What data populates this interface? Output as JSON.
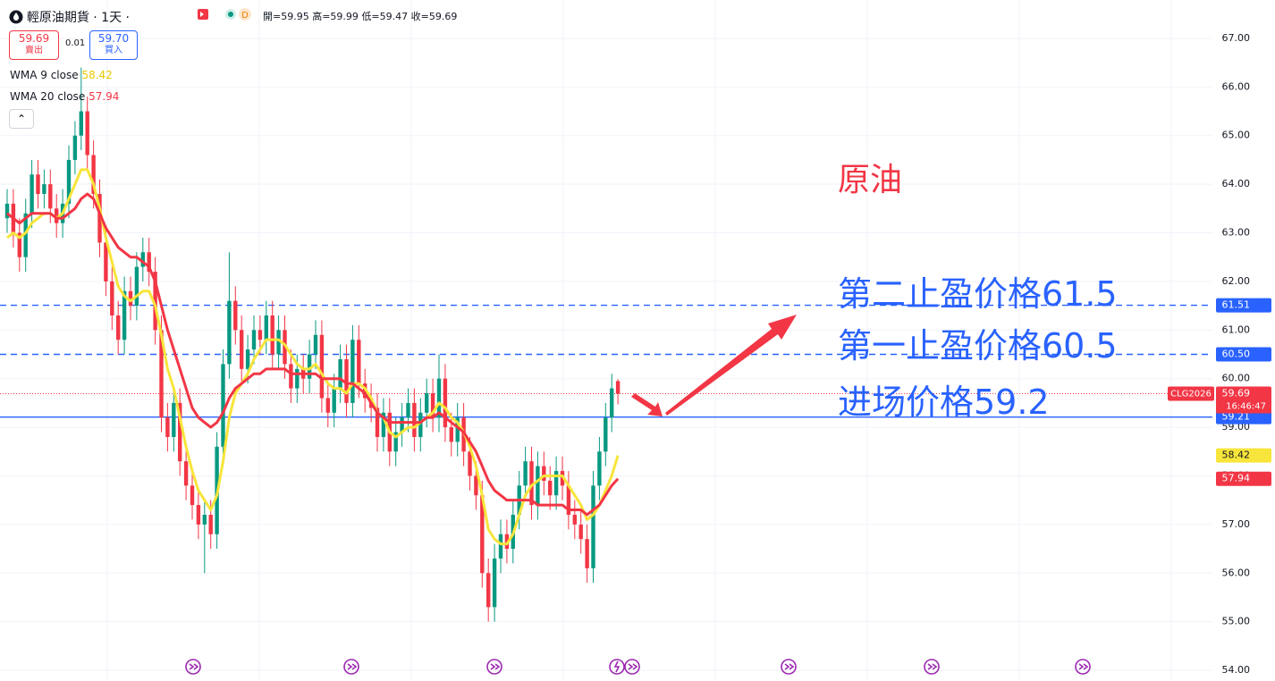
{
  "header": {
    "symbol_title": "輕原油期貨 · 1天 ·",
    "status": "D",
    "open": "開=59.95",
    "high": "高=59.99",
    "low": "低=59.47",
    "close": "收=59.69",
    "sell_price": "59.69",
    "sell_label": "賣出",
    "spread": "0.01",
    "buy_price": "59.70",
    "buy_label": "買入"
  },
  "chart_data": {
    "type": "candlestick",
    "open": [
      63.3,
      63.6,
      63.0,
      62.5,
      63.4,
      64.2,
      63.8,
      64.0,
      63.5,
      63.2,
      63.6,
      64.5,
      65.0,
      65.5,
      64.6,
      63.8,
      62.8,
      62.0,
      61.3,
      60.8,
      61.8,
      61.5,
      62.3,
      62.6,
      62.2,
      61.0,
      59.2,
      58.8,
      59.5,
      58.3,
      57.8,
      57.4,
      57.0,
      57.2,
      56.8,
      58.6,
      60.3,
      61.6,
      61.0,
      60.2,
      60.6,
      61.0,
      60.8,
      61.3,
      60.5,
      61.0,
      60.3,
      59.8,
      60.2,
      60.0,
      60.5,
      60.9,
      59.6,
      59.3,
      59.8,
      60.4,
      59.5,
      60.8,
      59.9,
      59.6,
      59.4,
      58.8,
      59.3,
      58.5,
      58.9,
      59.2,
      59.5,
      58.8,
      59.3,
      59.7,
      59.2,
      60.0,
      59.0,
      58.7,
      59.2,
      58.5,
      58.0,
      57.6,
      56.0,
      55.3,
      56.3,
      56.8,
      56.5,
      57.2,
      57.8,
      58.3,
      57.4,
      58.2,
      57.9,
      57.6,
      58.1,
      57.8,
      57.2,
      57.0,
      56.7,
      56.1,
      57.8,
      58.5,
      59.2,
      59.95
    ],
    "high": [
      63.9,
      63.9,
      63.3,
      63.7,
      64.5,
      64.5,
      64.3,
      64.3,
      63.8,
      63.9,
      64.8,
      65.3,
      66.4,
      65.8,
      64.9,
      64.1,
      63.1,
      62.3,
      61.6,
      62.1,
      62.1,
      62.6,
      62.9,
      62.9,
      62.5,
      61.3,
      59.5,
      59.8,
      59.8,
      58.6,
      58.1,
      57.7,
      57.5,
      57.5,
      58.9,
      60.6,
      62.6,
      61.9,
      61.3,
      60.9,
      61.3,
      61.3,
      61.6,
      61.6,
      61.3,
      61.3,
      60.6,
      60.5,
      60.5,
      60.8,
      61.2,
      61.2,
      59.9,
      60.1,
      60.7,
      60.7,
      61.1,
      61.1,
      60.2,
      59.9,
      59.7,
      59.6,
      59.6,
      59.2,
      59.5,
      59.8,
      59.8,
      59.6,
      60.0,
      60.0,
      60.5,
      60.3,
      59.3,
      59.5,
      59.5,
      58.8,
      58.3,
      57.9,
      56.3,
      56.6,
      57.1,
      57.1,
      57.5,
      58.1,
      58.6,
      58.6,
      58.5,
      58.5,
      58.2,
      58.4,
      58.4,
      58.1,
      57.5,
      57.3,
      57.0,
      58.1,
      58.8,
      59.5,
      60.1,
      59.99
    ],
    "low": [
      63.0,
      62.7,
      62.2,
      62.2,
      63.1,
      63.5,
      63.5,
      63.2,
      62.9,
      62.9,
      63.3,
      64.2,
      64.7,
      64.3,
      63.5,
      62.5,
      61.7,
      61.0,
      60.5,
      60.5,
      61.2,
      61.2,
      62.0,
      61.9,
      60.7,
      58.9,
      58.5,
      58.5,
      58.0,
      57.5,
      57.1,
      56.7,
      56.0,
      56.5,
      56.5,
      58.3,
      60.0,
      60.7,
      59.9,
      59.9,
      60.3,
      60.5,
      60.5,
      60.2,
      60.2,
      60.0,
      59.5,
      59.5,
      59.7,
      59.7,
      60.2,
      59.3,
      59.0,
      59.0,
      59.5,
      59.2,
      59.2,
      59.6,
      59.3,
      59.1,
      58.5,
      58.5,
      58.2,
      58.2,
      58.6,
      58.9,
      58.5,
      58.5,
      59.0,
      58.9,
      58.9,
      58.7,
      58.4,
      58.4,
      58.2,
      57.7,
      57.3,
      55.7,
      55.0,
      55.0,
      56.0,
      56.2,
      56.2,
      56.9,
      57.5,
      57.1,
      57.1,
      57.6,
      57.3,
      57.3,
      57.5,
      56.9,
      56.7,
      56.4,
      55.8,
      55.8,
      57.5,
      58.2,
      58.9,
      59.47
    ],
    "close": [
      63.6,
      63.0,
      62.5,
      63.4,
      64.2,
      63.8,
      64.0,
      63.5,
      63.2,
      63.6,
      64.5,
      65.0,
      65.5,
      64.6,
      63.8,
      62.8,
      62.0,
      61.3,
      60.8,
      61.8,
      61.5,
      62.3,
      62.6,
      62.2,
      61.0,
      59.2,
      58.8,
      59.5,
      58.3,
      57.8,
      57.4,
      57.0,
      57.2,
      56.8,
      58.6,
      60.3,
      61.6,
      61.0,
      60.2,
      60.6,
      61.0,
      60.8,
      61.3,
      60.5,
      61.0,
      60.3,
      59.8,
      60.2,
      60.0,
      60.5,
      60.9,
      59.6,
      59.3,
      59.8,
      60.4,
      59.5,
      60.8,
      59.9,
      59.6,
      59.4,
      58.8,
      59.3,
      58.5,
      58.9,
      59.2,
      59.5,
      58.8,
      59.3,
      59.7,
      59.2,
      60.0,
      59.0,
      58.7,
      59.2,
      58.5,
      58.0,
      57.6,
      56.0,
      55.3,
      56.3,
      56.8,
      56.5,
      57.2,
      57.8,
      58.3,
      57.4,
      58.2,
      57.9,
      57.6,
      58.1,
      57.8,
      57.2,
      57.0,
      56.7,
      56.1,
      57.8,
      58.5,
      59.2,
      59.8,
      59.69
    ],
    "up_color": "#089981",
    "down_color": "#f23645",
    "series": [
      {
        "name": "WMA 9 close",
        "color": "#f7e53b",
        "values": [
          62.9,
          63.0,
          62.9,
          63.0,
          63.2,
          63.3,
          63.4,
          63.4,
          63.3,
          63.4,
          63.7,
          64.0,
          64.3,
          64.3,
          64.0,
          63.5,
          62.9,
          62.4,
          61.9,
          61.7,
          61.6,
          61.7,
          61.8,
          61.8,
          61.5,
          60.9,
          60.2,
          59.8,
          59.2,
          58.6,
          58.1,
          57.7,
          57.5,
          57.3,
          57.6,
          58.3,
          59.2,
          59.7,
          59.9,
          60.1,
          60.4,
          60.6,
          60.8,
          60.8,
          60.8,
          60.7,
          60.5,
          60.3,
          60.2,
          60.2,
          60.3,
          60.1,
          59.9,
          59.8,
          59.8,
          59.7,
          59.9,
          59.9,
          59.8,
          59.6,
          59.3,
          59.2,
          58.9,
          58.8,
          58.9,
          59.0,
          59.0,
          59.1,
          59.2,
          59.3,
          59.5,
          59.4,
          59.2,
          59.1,
          58.9,
          58.6,
          58.2,
          57.6,
          56.9,
          56.7,
          56.6,
          56.6,
          56.8,
          57.2,
          57.6,
          57.8,
          57.9,
          58.0,
          58.0,
          58.0,
          58.0,
          57.8,
          57.6,
          57.4,
          57.1,
          57.2,
          57.4,
          57.7,
          58.0,
          58.42
        ]
      },
      {
        "name": "WMA 20 close",
        "color": "#f23645",
        "values": [
          63.4,
          63.3,
          63.2,
          63.3,
          63.4,
          63.4,
          63.4,
          63.4,
          63.3,
          63.3,
          63.4,
          63.5,
          63.7,
          63.8,
          63.7,
          63.4,
          63.1,
          62.9,
          62.7,
          62.6,
          62.5,
          62.5,
          62.4,
          62.3,
          62.0,
          61.5,
          61.0,
          60.6,
          60.2,
          59.8,
          59.4,
          59.2,
          59.1,
          59.0,
          59.1,
          59.3,
          59.6,
          59.8,
          59.9,
          60.0,
          60.1,
          60.1,
          60.2,
          60.2,
          60.2,
          60.2,
          60.1,
          60.1,
          60.1,
          60.1,
          60.1,
          60.0,
          60.0,
          60.0,
          60.0,
          59.9,
          59.9,
          59.8,
          59.7,
          59.5,
          59.3,
          59.2,
          59.1,
          59.1,
          59.1,
          59.1,
          59.1,
          59.1,
          59.2,
          59.2,
          59.3,
          59.2,
          59.1,
          59.0,
          58.9,
          58.7,
          58.5,
          58.2,
          57.9,
          57.7,
          57.6,
          57.5,
          57.5,
          57.5,
          57.5,
          57.5,
          57.4,
          57.4,
          57.4,
          57.4,
          57.4,
          57.3,
          57.3,
          57.3,
          57.2,
          57.3,
          57.4,
          57.6,
          57.8,
          57.94
        ]
      }
    ],
    "ylim": [
      53.78,
      67.79
    ],
    "yticks": [
      {
        "value": 54,
        "label": "54.00"
      },
      {
        "value": 55,
        "label": "55.00"
      },
      {
        "value": 56,
        "label": "56.00"
      },
      {
        "value": 57,
        "label": "57.00"
      },
      {
        "value": 58,
        "label": "58.00"
      },
      {
        "value": 59,
        "label": "59.00"
      },
      {
        "value": 60,
        "label": "60.00"
      },
      {
        "value": 61,
        "label": "61.00"
      },
      {
        "value": 62,
        "label": "62.00"
      },
      {
        "value": 63,
        "label": "63.00"
      },
      {
        "value": 64,
        "label": "64.00"
      },
      {
        "value": 65,
        "label": "65.00"
      },
      {
        "value": 66,
        "label": "66.00"
      },
      {
        "value": 67,
        "label": "67.00"
      }
    ],
    "grid": true,
    "levels": [
      {
        "value": 61.51,
        "label": "61.51",
        "style": "dashed",
        "color": "#2962ff"
      },
      {
        "value": 60.5,
        "label": "60.50",
        "style": "dashed",
        "color": "#2962ff"
      },
      {
        "value": 59.21,
        "label": "59.21",
        "style": "solid",
        "color": "#2962ff"
      }
    ],
    "last_price": {
      "symbol": "CLG2026",
      "countdown": "16:46:47",
      "color": "#f23645"
    },
    "annotations": [
      "原油",
      "第二止盈价格61.5",
      "第一止盈价格60.5",
      "进场价格59.2"
    ]
  }
}
